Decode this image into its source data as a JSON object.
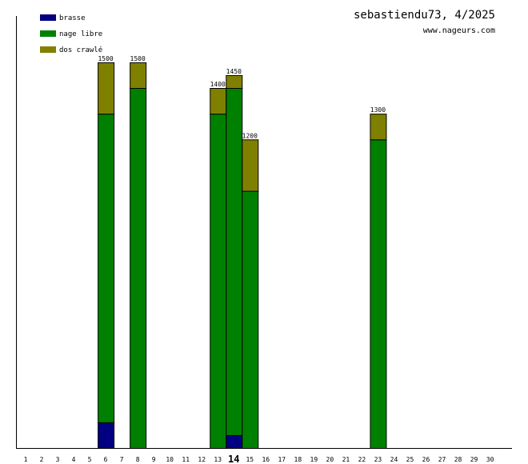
{
  "header": {
    "title": "sebastiendu73, 4/2025",
    "site": "www.nageurs.com"
  },
  "colors": {
    "brasse": "#000080",
    "nage_libre": "#008000",
    "dos_crawle": "#808000"
  },
  "chart_data": {
    "type": "bar",
    "stacked": true,
    "categories": [
      "1",
      "2",
      "3",
      "4",
      "5",
      "6",
      "7",
      "8",
      "9",
      "10",
      "11",
      "12",
      "13",
      "14",
      "15",
      "16",
      "17",
      "18",
      "19",
      "20",
      "21",
      "22",
      "23",
      "24",
      "25",
      "26",
      "27",
      "28",
      "29",
      "30"
    ],
    "highlighted_category": "14",
    "ylim": [
      0,
      1680
    ],
    "grid": false,
    "legend_position": "top-left",
    "series": [
      {
        "name": "brasse",
        "color": "#000080",
        "values": [
          0,
          0,
          0,
          0,
          0,
          100,
          0,
          0,
          0,
          0,
          0,
          0,
          0,
          50,
          0,
          0,
          0,
          0,
          0,
          0,
          0,
          0,
          0,
          0,
          0,
          0,
          0,
          0,
          0,
          0
        ]
      },
      {
        "name": "nage libre",
        "color": "#008000",
        "values": [
          0,
          0,
          0,
          0,
          0,
          1200,
          0,
          1400,
          0,
          0,
          0,
          0,
          1300,
          1350,
          1000,
          0,
          0,
          0,
          0,
          0,
          0,
          0,
          1200,
          0,
          0,
          0,
          0,
          0,
          0,
          0
        ]
      },
      {
        "name": "dos crawlé",
        "color": "#808000",
        "values": [
          0,
          0,
          0,
          0,
          0,
          200,
          0,
          100,
          0,
          0,
          0,
          0,
          100,
          50,
          200,
          0,
          0,
          0,
          0,
          0,
          0,
          0,
          100,
          0,
          0,
          0,
          0,
          0,
          0,
          0
        ]
      }
    ],
    "totals": [
      {
        "category": "6",
        "label": "1500"
      },
      {
        "category": "8",
        "label": "1500"
      },
      {
        "category": "13",
        "label": "1400"
      },
      {
        "category": "14",
        "label": "1450"
      },
      {
        "category": "15",
        "label": "1200"
      },
      {
        "category": "23",
        "label": "1300"
      }
    ]
  }
}
